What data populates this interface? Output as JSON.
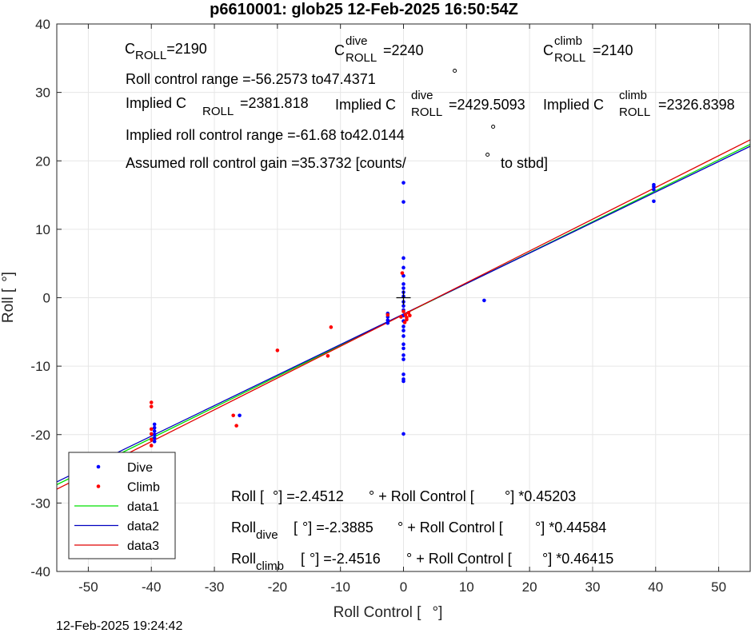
{
  "chart_data": {
    "type": "scatter",
    "title": "p6610001: glob25 12-Feb-2025 16:50:54Z",
    "xlabel": "Roll Control [",
    "xlabel_unit": "°]",
    "ylabel": "Roll [",
    "ylabel_unit": "°]",
    "xlim": [
      -55,
      55
    ],
    "ylim": [
      -40,
      40
    ],
    "xticks": [
      -50,
      -40,
      -30,
      -20,
      -10,
      0,
      10,
      20,
      30,
      40,
      50
    ],
    "yticks": [
      -40,
      -30,
      -20,
      -10,
      0,
      10,
      20,
      30,
      40
    ],
    "grid": true,
    "legend_position": "bottom-left",
    "series": [
      {
        "name": "Dive",
        "kind": "points",
        "color": "#0000ff",
        "points": [
          [
            -48,
            -24.5
          ],
          [
            -39.5,
            -18.5
          ],
          [
            -39.5,
            -19.0
          ],
          [
            -39.5,
            -19.5
          ],
          [
            -39.5,
            -20.0
          ],
          [
            -39.5,
            -20.5
          ],
          [
            -39.5,
            -21.0
          ],
          [
            -26,
            -17.2
          ],
          [
            -2.5,
            -2.3
          ],
          [
            -2.5,
            -2.8
          ],
          [
            -2.5,
            -3.3
          ],
          [
            -2.5,
            -3.7
          ],
          [
            0,
            16.8
          ],
          [
            0,
            14.0
          ],
          [
            0,
            5.8
          ],
          [
            0,
            4.4
          ],
          [
            0,
            3.2
          ],
          [
            0,
            2.0
          ],
          [
            0,
            1.4
          ],
          [
            0,
            0.8
          ],
          [
            0,
            0.2
          ],
          [
            0,
            -0.6
          ],
          [
            0,
            -1.2
          ],
          [
            0,
            -1.8
          ],
          [
            0,
            -2.6
          ],
          [
            0,
            -3.4
          ],
          [
            0,
            -4.2
          ],
          [
            0,
            -4.8
          ],
          [
            0,
            -5.6
          ],
          [
            0,
            -6.8
          ],
          [
            0,
            -7.4
          ],
          [
            0,
            -8.4
          ],
          [
            0,
            -9.0
          ],
          [
            0,
            -11.2
          ],
          [
            0,
            -11.9
          ],
          [
            0,
            -12.2
          ],
          [
            0,
            -19.9
          ],
          [
            12.8,
            -0.4
          ],
          [
            39.7,
            16.5
          ],
          [
            39.7,
            16.2
          ],
          [
            39.7,
            15.8
          ],
          [
            39.7,
            14.1
          ]
        ]
      },
      {
        "name": "Climb",
        "kind": "points",
        "color": "#ff0000",
        "points": [
          [
            -40,
            -15.3
          ],
          [
            -40,
            -15.9
          ],
          [
            -40,
            -19.2
          ],
          [
            -40,
            -19.9
          ],
          [
            -40,
            -20.7
          ],
          [
            -40,
            -21.6
          ],
          [
            -40,
            -23.0
          ],
          [
            -40,
            -24.0
          ],
          [
            -40,
            -24.5
          ],
          [
            -40,
            -25.3
          ],
          [
            -27,
            -17.2
          ],
          [
            -26.5,
            -18.7
          ],
          [
            -20,
            -7.7
          ],
          [
            -11.5,
            -4.3
          ],
          [
            -12,
            -8.5
          ],
          [
            -2.5,
            -2.5
          ],
          [
            -0.2,
            3.6
          ],
          [
            0,
            -2.0
          ],
          [
            0.3,
            -2.5
          ],
          [
            0.5,
            -2.9
          ],
          [
            0.5,
            -3.2
          ],
          [
            0.8,
            -2.2
          ],
          [
            1.0,
            -2.6
          ],
          [
            0.2,
            -3.6
          ],
          [
            -0.4,
            -2.8
          ]
        ]
      },
      {
        "name": "data1",
        "kind": "line",
        "color": "#00e000",
        "x": [
          -55,
          55
        ],
        "y": [
          -27.315,
          22.41
        ]
      },
      {
        "name": "data2",
        "kind": "line",
        "color": "#0000c0",
        "x": [
          -55,
          55
        ],
        "y": [
          -26.91,
          22.133
        ]
      },
      {
        "name": "data3",
        "kind": "line",
        "color": "#e00000",
        "x": [
          -55,
          55
        ],
        "y": [
          -27.98,
          23.077
        ]
      }
    ],
    "center_marker": {
      "x": 0,
      "y": 0,
      "color": "#000000"
    },
    "annotations": {
      "c_roll": {
        "main": "C",
        "sub": "ROLL",
        "value": "=2190"
      },
      "c_roll_dive": {
        "main": "C",
        "sup": "dive",
        "sub": "ROLL",
        "value": "=2240"
      },
      "c_roll_climb": {
        "main": "C",
        "sup": "climb",
        "sub": "ROLL",
        "value": "=2140"
      },
      "roll_range": {
        "text": "Roll control range =-56.2573 to47.4371",
        "deg": "°"
      },
      "implied_c": {
        "main": "Implied C",
        "sub": "ROLL",
        "value": "=2381.818"
      },
      "implied_c_dive": {
        "main": "Implied C",
        "sup": "dive",
        "sub": "ROLL",
        "value": "=2429.5093"
      },
      "implied_c_climb": {
        "main": "Implied C",
        "sup": "climb",
        "sub": "ROLL",
        "value": "=2326.8398"
      },
      "implied_range": {
        "text": "Implied roll control range =-61.68 to42.0144",
        "deg": "°"
      },
      "gain": {
        "text": "Assumed roll control gain =35.3732 [counts/",
        "deg": "°",
        "tail": " to stbd]"
      },
      "fit_all": {
        "a": "Roll [",
        "b": "°] =-2.4512",
        "c": "° + Roll Control [",
        "d": "°] *0.45203"
      },
      "fit_dive": {
        "main": "Roll",
        "sub": "dive",
        "b": "[",
        "c": "°] =-2.3885",
        "d": "° + Roll Control [",
        "e": "°] *0.44584"
      },
      "fit_climb": {
        "main": "Roll",
        "sub": "climb",
        "b": "[",
        "c": "°] =-2.4516",
        "d": "° + Roll Control [",
        "e": "°] *0.46415"
      }
    }
  },
  "footer": {
    "timestamp": "12-Feb-2025 19:24:42"
  }
}
